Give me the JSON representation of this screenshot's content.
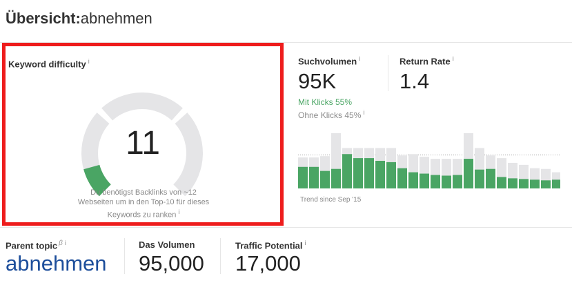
{
  "header": {
    "title_prefix": "Übersicht:",
    "keyword": "abnehmen"
  },
  "info_glyph": "i",
  "keyword_difficulty": {
    "label": "Keyword difficulty",
    "value": "11",
    "gauge_fraction": 0.11,
    "description_lines": [
      "Du benötigst Backlinks von ~12",
      "Webseiten um in den Top-10 für dieses",
      "Keywords zu ranken"
    ]
  },
  "search_volume": {
    "label": "Suchvolumen",
    "value": "95K",
    "with_clicks": "Mit Klicks 55%",
    "without_clicks": "Ohne Klicks 45%",
    "trend_label": "Trend since Sep '15",
    "trend": {
      "totals": [
        46,
        46,
        48,
        82,
        60,
        60,
        60,
        60,
        60,
        49,
        51,
        47,
        44,
        44,
        44,
        82,
        60,
        49,
        45,
        38,
        35,
        30,
        29,
        24
      ],
      "clicks": [
        32,
        32,
        26,
        29,
        51,
        45,
        45,
        41,
        39,
        30,
        24,
        22,
        20,
        19,
        20,
        44,
        28,
        29,
        17,
        15,
        14,
        13,
        12,
        13
      ],
      "colors": {
        "clicks": "#4aa564",
        "total": "#e5e5e7"
      }
    }
  },
  "return_rate": {
    "label": "Return Rate",
    "value": "1.4"
  },
  "parent_topic": {
    "label": "Parent topic",
    "beta": "β",
    "value": "abnehmen"
  },
  "total_volume": {
    "label": "Das Volumen",
    "value": "95,000"
  },
  "traffic_potential": {
    "label": "Traffic Potential",
    "value": "17,000"
  },
  "colors": {
    "highlight_border": "#ee1c1c",
    "gauge_fill": "#4aa564",
    "gauge_track": "#e5e5e7",
    "link": "#1d4e9b"
  }
}
